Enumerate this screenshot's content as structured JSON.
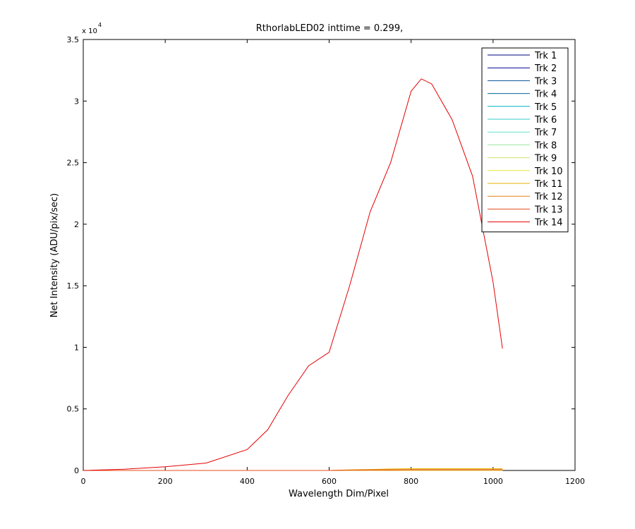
{
  "chart_data": {
    "type": "line",
    "title": "RthorlabLED02 inttime = 0.299,",
    "x_label": "Wavelength Dim/Pixel",
    "y_label": "Net Intensity (ADU/pix/sec)",
    "y_exponent": {
      "base": "x 10",
      "power": "4"
    },
    "x": [
      0,
      100,
      200,
      300,
      400,
      450,
      500,
      550,
      600,
      650,
      700,
      750,
      800,
      825,
      850,
      900,
      950,
      1000,
      1023
    ],
    "xlim": [
      0,
      1200
    ],
    "xticks": [
      0,
      200,
      400,
      600,
      800,
      1000,
      1200
    ],
    "ylim": [
      0,
      35000
    ],
    "yticks": [
      {
        "value": 0,
        "label": "0"
      },
      {
        "value": 5000,
        "label": "0.5"
      },
      {
        "value": 10000,
        "label": "1"
      },
      {
        "value": 15000,
        "label": "1.5"
      },
      {
        "value": 20000,
        "label": "2"
      },
      {
        "value": 25000,
        "label": "2.5"
      },
      {
        "value": 30000,
        "label": "3"
      },
      {
        "value": 35000,
        "label": "3.5"
      }
    ],
    "grid": false,
    "legend": "top-right",
    "series": [
      {
        "name": "Trk 1",
        "color": "#000080",
        "values": [
          0,
          0,
          0,
          0,
          0,
          0,
          0,
          0,
          0,
          0,
          0,
          0,
          0,
          0,
          0,
          0,
          0,
          0,
          0
        ]
      },
      {
        "name": "Trk 2",
        "color": "#000099",
        "values": [
          0,
          0,
          0,
          0,
          0,
          0,
          0,
          0,
          0,
          0,
          0,
          0,
          0,
          0,
          0,
          0,
          0,
          0,
          0
        ]
      },
      {
        "name": "Trk 3",
        "color": "#004c99",
        "values": [
          0,
          0,
          0,
          0,
          0,
          0,
          0,
          0,
          0,
          0,
          0,
          0,
          0,
          0,
          0,
          0,
          0,
          0,
          0
        ]
      },
      {
        "name": "Trk 4",
        "color": "#006699",
        "values": [
          0,
          0,
          0,
          0,
          0,
          0,
          0,
          0,
          0,
          0,
          0,
          0,
          0,
          0,
          0,
          0,
          0,
          0,
          0
        ]
      },
      {
        "name": "Trk 5",
        "color": "#00b2cc",
        "values": [
          0,
          0,
          0,
          0,
          0,
          0,
          0,
          0,
          0,
          0,
          0,
          0,
          0,
          0,
          0,
          0,
          0,
          0,
          0
        ]
      },
      {
        "name": "Trk 6",
        "color": "#33cccc",
        "values": [
          0,
          0,
          0,
          0,
          0,
          0,
          0,
          0,
          0,
          0,
          0,
          0,
          0,
          0,
          0,
          0,
          0,
          0,
          0
        ]
      },
      {
        "name": "Trk 7",
        "color": "#66e5cc",
        "values": [
          0,
          0,
          0,
          0,
          0,
          0,
          0,
          0,
          0,
          0,
          0,
          0,
          0,
          0,
          0,
          0,
          0,
          0,
          0
        ]
      },
      {
        "name": "Trk 8",
        "color": "#99e599",
        "values": [
          0,
          0,
          0,
          0,
          0,
          0,
          0,
          0,
          0,
          0,
          0,
          0,
          0,
          0,
          0,
          0,
          0,
          0,
          0
        ]
      },
      {
        "name": "Trk 9",
        "color": "#cce566",
        "values": [
          0,
          0,
          0,
          0,
          0,
          0,
          0,
          0,
          0,
          0,
          0,
          0,
          0,
          0,
          0,
          0,
          0,
          0,
          0
        ]
      },
      {
        "name": "Trk 10",
        "color": "#e5e533",
        "values": [
          0,
          0,
          0,
          0,
          0,
          0,
          0,
          0,
          0,
          0,
          0,
          0,
          0,
          0,
          0,
          0,
          0,
          0,
          0
        ]
      },
      {
        "name": "Trk 11",
        "color": "#e5b200",
        "values": [
          0,
          0,
          0,
          0,
          0,
          0,
          0,
          0,
          0,
          50,
          80,
          120,
          140,
          140,
          140,
          140,
          140,
          140,
          140
        ]
      },
      {
        "name": "Trk 12",
        "color": "#e57f19",
        "values": [
          0,
          0,
          0,
          0,
          0,
          0,
          0,
          0,
          0,
          30,
          50,
          60,
          70,
          70,
          70,
          70,
          70,
          70,
          70
        ]
      },
      {
        "name": "Trk 13",
        "color": "#e54c19",
        "values": [
          0,
          0,
          0,
          0,
          0,
          0,
          0,
          0,
          0,
          20,
          30,
          30,
          40,
          40,
          40,
          40,
          40,
          40,
          40
        ]
      },
      {
        "name": "Trk 14",
        "color": "#e50000",
        "values": [
          0,
          100,
          300,
          600,
          1700,
          3300,
          6100,
          8500,
          9600,
          15000,
          21000,
          25000,
          30800,
          31800,
          31400,
          28500,
          23900,
          15300,
          9900
        ]
      }
    ]
  }
}
